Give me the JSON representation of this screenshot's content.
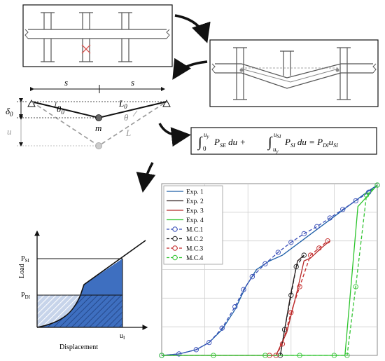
{
  "mechanism": {
    "span_left": "s",
    "span_right": "s",
    "delta0": "δ",
    "delta0_sub": "0",
    "theta0": "θ",
    "theta0_sub": "0",
    "mass": "m",
    "L0": "L",
    "L0_sub": "0",
    "theta": "θ",
    "u": "u",
    "L": "L"
  },
  "equation": {
    "int1_upper": "u",
    "int1_upper_sub": "y",
    "int1_lower": "0",
    "term1": "P",
    "term1_sub": "SE",
    "du1": " du + ",
    "int2_upper": "u",
    "int2_upper_sub": "SI",
    "int2_lower": "u",
    "int2_lower_sub": "y",
    "term2": "P",
    "term2_sub": "SI",
    "du2": " du  = ",
    "rhs_p": "P",
    "rhs_p_sub": "DI",
    "rhs_u": "u",
    "rhs_u_sub": "SI"
  },
  "energy_plot": {
    "ylabel": "Load",
    "xlabel": "Displacement",
    "psi": "P",
    "psi_sub": "SI",
    "pdi": "P",
    "pdi_sub": "DI",
    "ui": "u",
    "ui_sub": "I"
  },
  "chart_data": {
    "type": "line",
    "title": "",
    "xlabel": "",
    "ylabel": "",
    "legend_position": "top-left",
    "grid": true,
    "xlim": [
      0,
      5
    ],
    "ylim": [
      0,
      6
    ],
    "series": [
      {
        "name": "Exp. 1",
        "style": "solid",
        "color": "#1f5fa8",
        "x": [
          0,
          0.4,
          0.8,
          1.1,
          1.4,
          1.7,
          1.95,
          2.2,
          2.5,
          2.8,
          3.2,
          3.6,
          4.0,
          4.4,
          4.8,
          5.0
        ],
        "y": [
          0,
          0.05,
          0.2,
          0.45,
          0.9,
          1.6,
          2.4,
          3.0,
          3.3,
          3.5,
          3.95,
          4.4,
          4.85,
          5.3,
          5.75,
          5.95
        ]
      },
      {
        "name": "Exp. 2",
        "style": "solid",
        "color": "#2a1a1a",
        "x": [
          2.75,
          2.85,
          3.0,
          3.15,
          3.3
        ],
        "y": [
          0,
          0.9,
          2.2,
          3.3,
          3.5
        ]
      },
      {
        "name": "Exp. 3",
        "style": "solid",
        "color": "#b42a2a",
        "x": [
          0,
          2.5,
          2.65,
          2.9,
          3.15,
          3.3,
          3.45,
          3.7,
          3.9
        ],
        "y": [
          0,
          0,
          0,
          0.8,
          2.3,
          3.3,
          3.4,
          3.75,
          4.0
        ]
      },
      {
        "name": "Exp. 4",
        "style": "solid",
        "color": "#2bc42b",
        "x": [
          0,
          3.7,
          4.0,
          4.25,
          4.4,
          4.55,
          4.85,
          5.0
        ],
        "y": [
          0,
          0,
          0,
          0,
          2.6,
          5.2,
          5.7,
          5.95
        ]
      },
      {
        "name": "M.C.1",
        "style": "dashed-circle",
        "color": "#3a4fb8",
        "x": [
          0,
          0.4,
          0.8,
          1.1,
          1.4,
          1.7,
          1.9,
          2.1,
          2.4,
          2.7,
          3.0,
          3.3,
          3.6,
          3.9,
          4.2,
          4.5,
          4.8,
          5.0
        ],
        "y": [
          0,
          0.05,
          0.2,
          0.45,
          0.95,
          1.7,
          2.3,
          2.75,
          3.2,
          3.6,
          3.95,
          4.25,
          4.5,
          4.8,
          5.1,
          5.4,
          5.7,
          5.95
        ]
      },
      {
        "name": "M.C.2",
        "style": "dashed-circle",
        "color": "#222222",
        "x": [
          2.75,
          2.85,
          3.0,
          3.12,
          3.3
        ],
        "y": [
          0,
          0.9,
          2.1,
          3.1,
          3.5
        ]
      },
      {
        "name": "M.C.3",
        "style": "dashed-circle",
        "color": "#c42a2a",
        "x": [
          2.5,
          2.65,
          2.8,
          3.0,
          3.2,
          3.45,
          3.65,
          3.85
        ],
        "y": [
          0,
          0,
          0.4,
          1.5,
          2.4,
          3.5,
          3.75,
          4.0
        ]
      },
      {
        "name": "M.C.4",
        "style": "dashed-circle",
        "color": "#33c433",
        "x": [
          0,
          1.2,
          2.4,
          3.2,
          4.0,
          4.3,
          4.5,
          4.75,
          5.0
        ],
        "y": [
          0,
          0,
          0,
          0,
          0,
          0,
          2.4,
          5.6,
          5.95
        ]
      }
    ]
  }
}
